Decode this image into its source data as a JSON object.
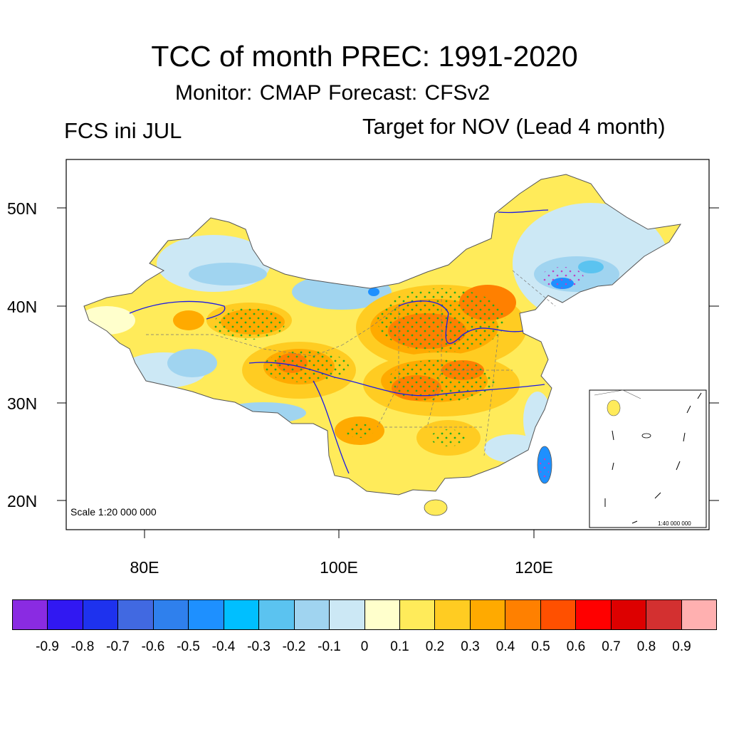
{
  "title": "TCC of month PREC: 1991-2020",
  "subtitle": "Monitor: CMAP   Forecast: CFSv2",
  "left_label": "FCS ini JUL",
  "right_label": "Target for NOV (Lead 4 month)",
  "lat_labels": [
    "50N",
    "40N",
    "30N",
    "20N"
  ],
  "lon_labels": [
    "80E",
    "100E",
    "120E"
  ],
  "scale_text": "Scale 1:20 000 000",
  "inset_scale_text": "1:40 000 000",
  "colorbar": {
    "colors": [
      "#8a2be2",
      "#3118f2",
      "#1e32ee",
      "#4169e1",
      "#2f80ed",
      "#1e90ff",
      "#00bfff",
      "#5bc3f0",
      "#a0d4f0",
      "#cce8f5",
      "#ffffcc",
      "#ffeb5a",
      "#ffcc22",
      "#ffaa00",
      "#ff8000",
      "#ff5000",
      "#ff0000",
      "#dd0000",
      "#d33030",
      "#ffb0b0"
    ],
    "labels": [
      "-0.9",
      "-0.8",
      "-0.7",
      "-0.6",
      "-0.5",
      "-0.4",
      "-0.3",
      "-0.2",
      "-0.1",
      "0",
      "0.1",
      "0.2",
      "0.3",
      "0.4",
      "0.5",
      "0.6",
      "0.7",
      "0.8",
      "0.9"
    ]
  }
}
